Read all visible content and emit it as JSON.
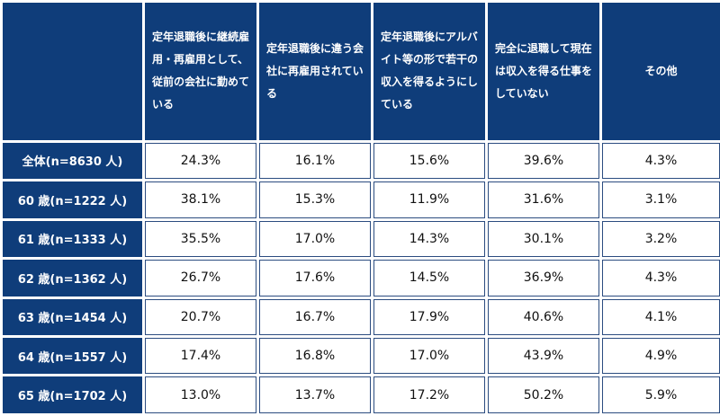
{
  "table": {
    "corner": "",
    "columns": [
      "定年退職後に継続雇用・再雇用として、従前の会社に勤めている",
      "定年退職後に違う会社に再雇用されている",
      "定年退職後にアルバイト等の形で若干の収入を得るようにしている",
      "完全に退職して現在は収入を得る仕事をしていない",
      "その他"
    ],
    "rows": [
      {
        "label": "全体(n=8630 人)",
        "values": [
          "24.3%",
          "16.1%",
          "15.6%",
          "39.6%",
          "4.3%"
        ]
      },
      {
        "label": "60 歳(n=1222 人)",
        "values": [
          "38.1%",
          "15.3%",
          "11.9%",
          "31.6%",
          "3.1%"
        ]
      },
      {
        "label": "61 歳(n=1333 人)",
        "values": [
          "35.5%",
          "17.0%",
          "14.3%",
          "30.1%",
          "3.2%"
        ]
      },
      {
        "label": "62 歳(n=1362 人)",
        "values": [
          "26.7%",
          "17.6%",
          "14.5%",
          "36.9%",
          "4.3%"
        ]
      },
      {
        "label": "63 歳(n=1454 人)",
        "values": [
          "20.7%",
          "16.7%",
          "17.9%",
          "40.6%",
          "4.1%"
        ]
      },
      {
        "label": "64 歳(n=1557 人)",
        "values": [
          "17.4%",
          "16.8%",
          "17.0%",
          "43.9%",
          "4.9%"
        ]
      },
      {
        "label": "65 歳(n=1702 人)",
        "values": [
          "13.0%",
          "13.7%",
          "17.2%",
          "50.2%",
          "5.9%"
        ]
      }
    ]
  },
  "colors": {
    "header_bg": "#0f3d7a",
    "header_text": "#ffffff",
    "cell_bg": "#ffffff",
    "cell_border": "#2b4c80"
  }
}
